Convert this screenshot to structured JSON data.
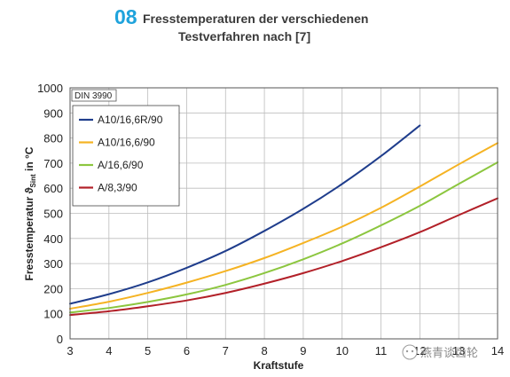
{
  "figure": {
    "number": "08",
    "title_line1": "Fresstemperaturen der verschiedenen",
    "title_line2": "Testverfahren nach [7]"
  },
  "watermark": {
    "text": "燕青谈齿轮",
    "icon": "wechat-icon"
  },
  "chart_data": {
    "type": "line",
    "title": "Fresstemperaturen der verschiedenen Testverfahren nach [7]",
    "annotation": "DIN 3990",
    "xlabel": "Kraftstufe",
    "ylabel_main": "Fresstemperatur ϑ",
    "ylabel_sub": "Sint",
    "ylabel_unit": " in °C",
    "xlim": [
      3,
      14
    ],
    "ylim": [
      0,
      1000
    ],
    "xticks": [
      "3",
      "4",
      "5",
      "6",
      "7",
      "8",
      "9",
      "10",
      "11",
      "12",
      "13",
      "14"
    ],
    "yticks": [
      "0",
      "100",
      "200",
      "300",
      "400",
      "500",
      "600",
      "700",
      "800",
      "900",
      "1000"
    ],
    "grid": true,
    "legend_position": "top-left",
    "series": [
      {
        "name": "A10/16,6R/90",
        "color": "#1f3d8c",
        "x": [
          3,
          4,
          5,
          6,
          7,
          8,
          9,
          10,
          11,
          12
        ],
        "y": [
          140,
          178,
          225,
          283,
          350,
          430,
          518,
          617,
          728,
          850
        ]
      },
      {
        "name": "A10/16,6/90",
        "color": "#f5b323",
        "x": [
          3,
          4,
          5,
          6,
          7,
          8,
          9,
          10,
          11,
          12,
          13,
          14
        ],
        "y": [
          120,
          148,
          183,
          224,
          270,
          322,
          382,
          447,
          522,
          607,
          695,
          780
        ]
      },
      {
        "name": "A/16,6/90",
        "color": "#8cc63f",
        "x": [
          3,
          4,
          5,
          6,
          7,
          8,
          9,
          10,
          11,
          12,
          13,
          14
        ],
        "y": [
          105,
          123,
          147,
          177,
          215,
          262,
          317,
          380,
          452,
          530,
          617,
          703
        ]
      },
      {
        "name": "A/8,3/90",
        "color": "#b22028",
        "x": [
          3,
          4,
          5,
          6,
          7,
          8,
          9,
          10,
          11,
          12,
          13,
          14
        ],
        "y": [
          95,
          110,
          130,
          153,
          183,
          220,
          262,
          310,
          365,
          425,
          493,
          560
        ]
      }
    ]
  }
}
